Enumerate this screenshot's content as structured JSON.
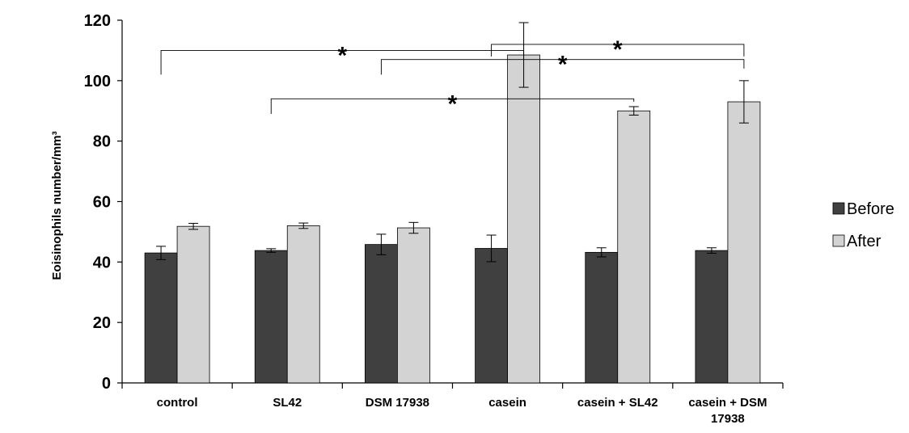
{
  "chart_data": {
    "type": "bar",
    "title": "",
    "xlabel": "",
    "ylabel": "Eoisinophils number/mm³",
    "ylim": [
      0,
      120
    ],
    "yticks": [
      0,
      20,
      40,
      60,
      80,
      100,
      120
    ],
    "grid": false,
    "legend_position": "right",
    "categories": [
      [
        "control"
      ],
      [
        "SL42"
      ],
      [
        "DSM 17938"
      ],
      [
        "casein"
      ],
      [
        "casein + SL42"
      ],
      [
        "casein +  DSM",
        "17938"
      ]
    ],
    "series": [
      {
        "name": "Before",
        "color": "#404040",
        "values": [
          43.0,
          43.8,
          45.8,
          44.5,
          43.2,
          43.8
        ],
        "errors": [
          2.2,
          0.6,
          3.4,
          4.4,
          1.5,
          0.9
        ]
      },
      {
        "name": "After",
        "color": "#d3d3d3",
        "values": [
          51.8,
          52.0,
          51.3,
          108.5,
          90.0,
          93.0
        ],
        "errors": [
          1.0,
          0.9,
          1.8,
          10.7,
          1.4,
          7.0
        ]
      }
    ],
    "significance": [
      {
        "from": 0,
        "to": 3,
        "label": "*",
        "level": 110,
        "from_drop": 8,
        "to_drop": 2
      },
      {
        "from": 3,
        "to": 5,
        "label": "*",
        "level": 112,
        "from_drop": 4,
        "to_drop": 4
      },
      {
        "from": 2,
        "to": 5,
        "label": "*",
        "level": 107,
        "from_drop": 5,
        "to_drop": 3
      },
      {
        "from": 1,
        "to": 4,
        "label": "*",
        "level": 94,
        "from_drop": 5,
        "to_drop": 1
      }
    ]
  }
}
